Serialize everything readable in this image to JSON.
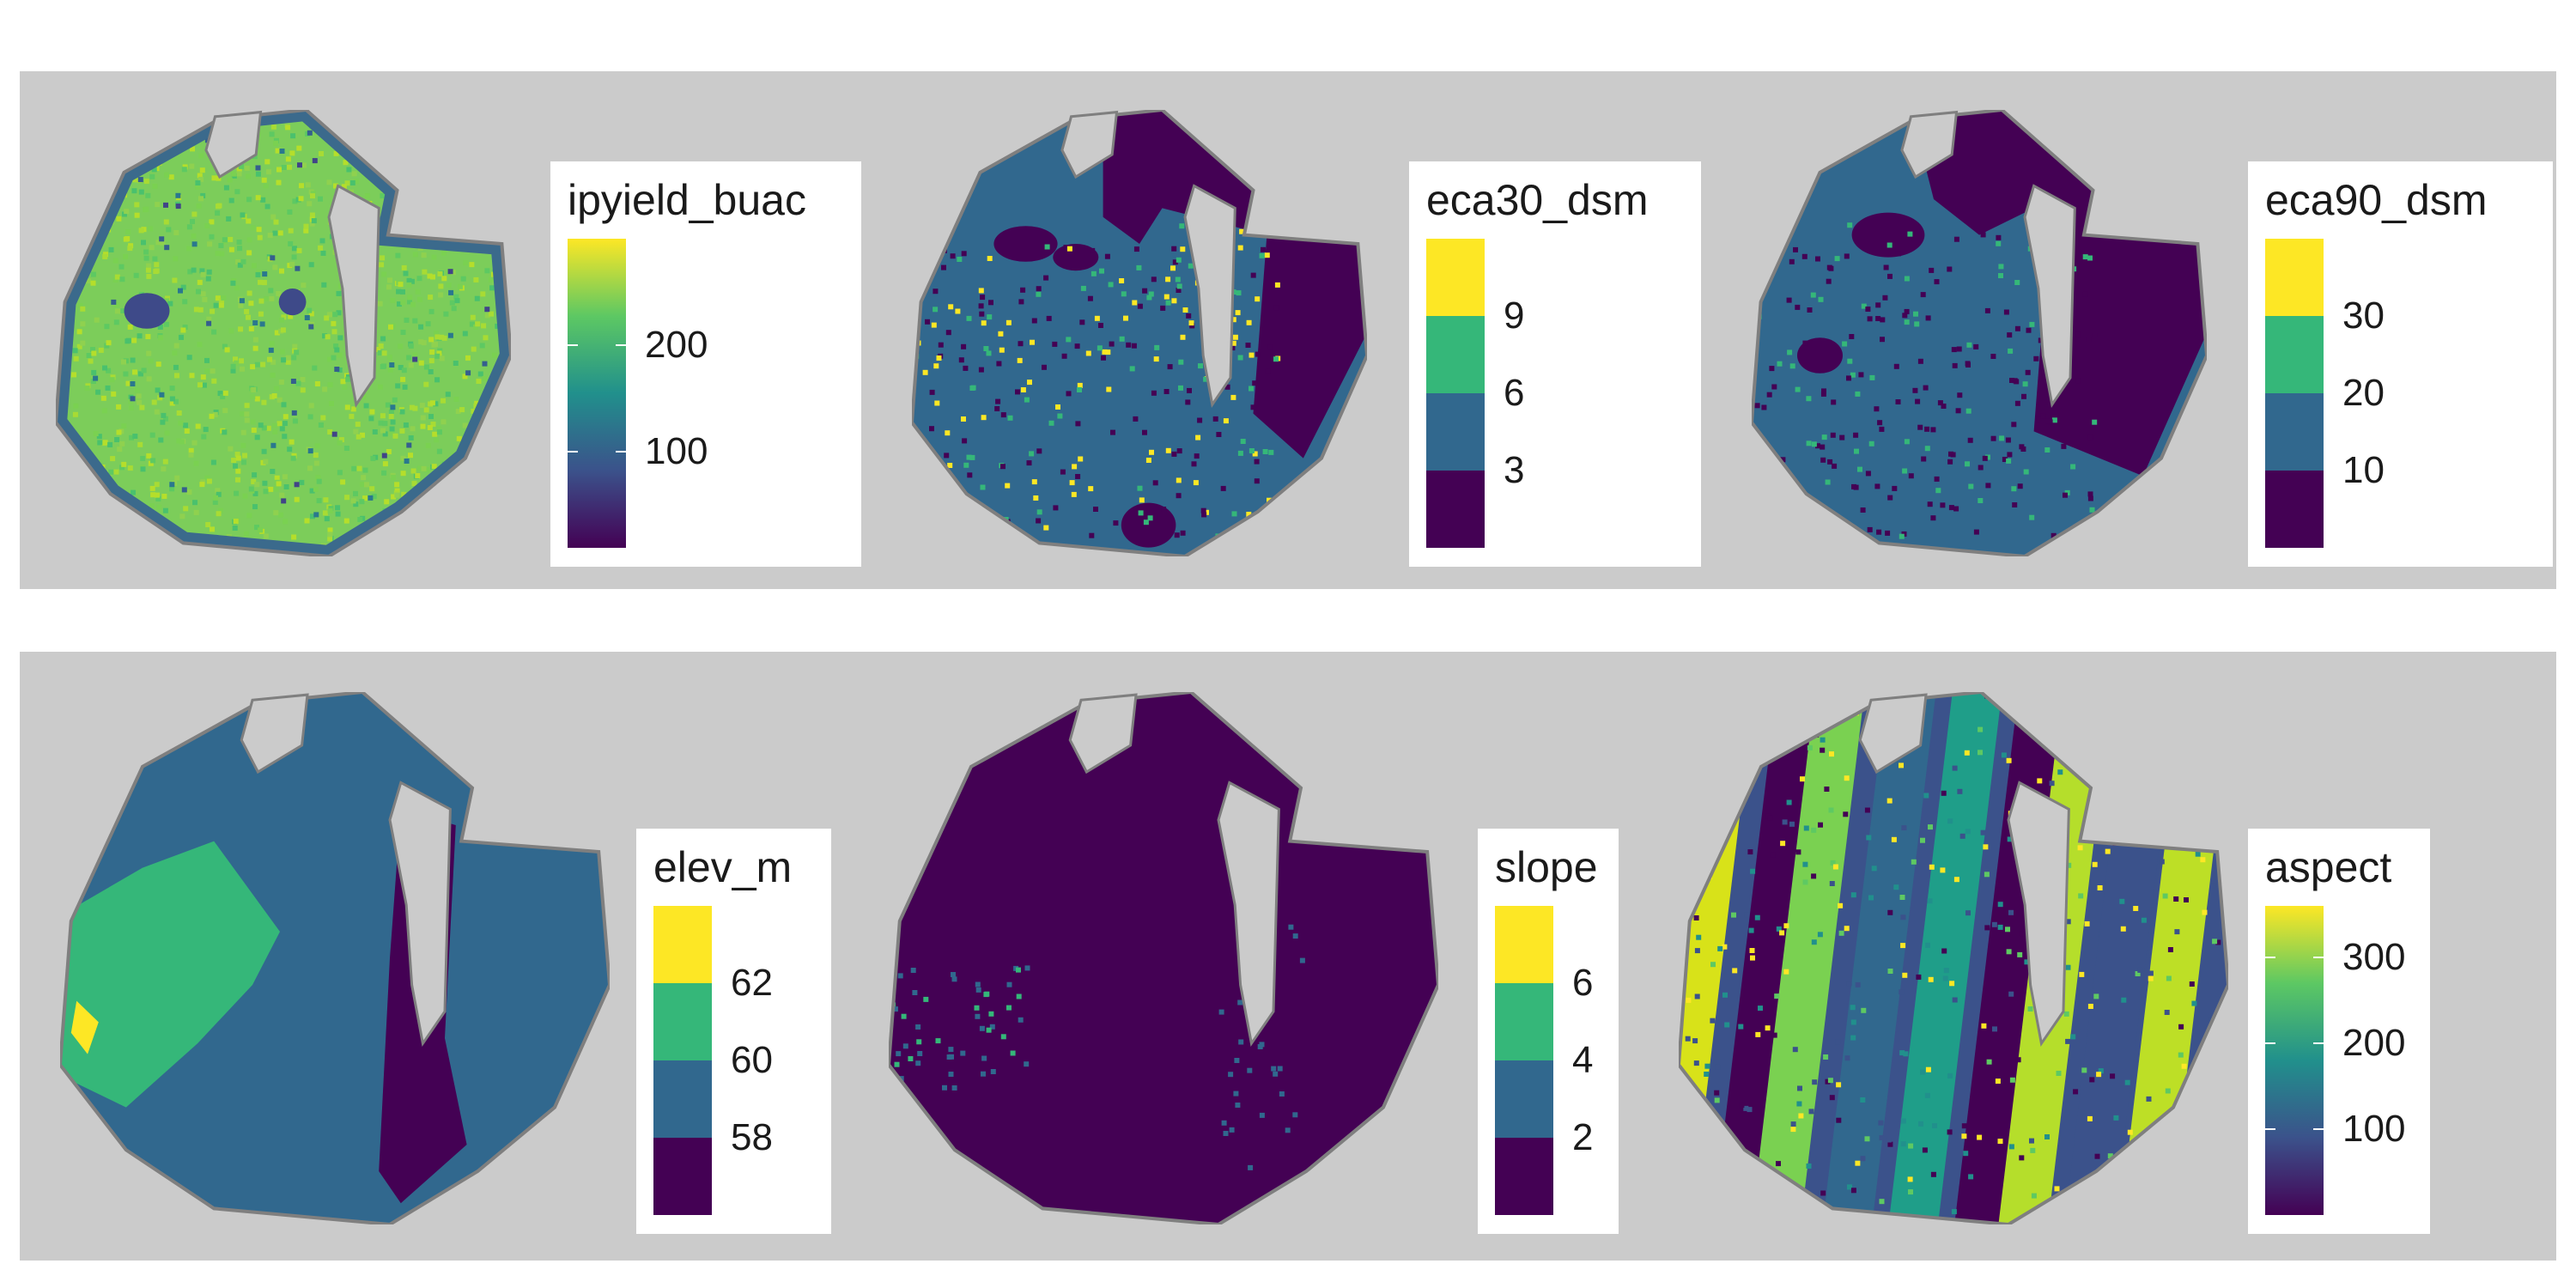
{
  "colors": {
    "panel_background": "#cbcbcb",
    "field_outline": "#7f7f7f",
    "hole": "#cbcbcb",
    "viridis": [
      "#440154",
      "#3b528b",
      "#21908c",
      "#5dc863",
      "#fde725"
    ],
    "classes4": [
      "#440154",
      "#31688e",
      "#35b779",
      "#fde725"
    ]
  },
  "chart_data": [
    {
      "type": "heatmap",
      "variable": "ipyield_buac",
      "legend_kind": "continuous",
      "legend_title": "ipyield_buac",
      "breaks": [
        "200",
        "100"
      ],
      "break_values": [
        200,
        100
      ],
      "range": [
        10,
        300
      ],
      "dominant_value_range": [
        170,
        250
      ]
    },
    {
      "type": "heatmap",
      "variable": "eca30_dsm",
      "legend_kind": "binned",
      "legend_title": "eca30_dsm",
      "breaks": [
        "9",
        "6",
        "3"
      ],
      "bins": 4,
      "dominant_bins": [
        "<3",
        "3-6"
      ]
    },
    {
      "type": "heatmap",
      "variable": "eca90_dsm",
      "legend_kind": "binned",
      "legend_title": "eca90_dsm",
      "breaks": [
        "30",
        "20",
        "10"
      ],
      "bins": 4,
      "dominant_bins": [
        "<10",
        "10-20"
      ]
    },
    {
      "type": "heatmap",
      "variable": "elev_m",
      "legend_kind": "binned",
      "legend_title": "elev_m",
      "breaks": [
        "62",
        "60",
        "58"
      ],
      "bins": 4,
      "dominant_bins": [
        "58-60",
        "60-62"
      ]
    },
    {
      "type": "heatmap",
      "variable": "slope",
      "legend_kind": "binned",
      "legend_title": "slope",
      "breaks": [
        "6",
        "4",
        "2"
      ],
      "bins": 4,
      "dominant_bins": [
        "<2"
      ]
    },
    {
      "type": "heatmap",
      "variable": "aspect",
      "legend_kind": "continuous",
      "legend_title": "aspect",
      "breaks": [
        "300",
        "200",
        "100"
      ],
      "break_values": [
        300,
        200,
        100
      ],
      "range": [
        0,
        360
      ]
    }
  ]
}
